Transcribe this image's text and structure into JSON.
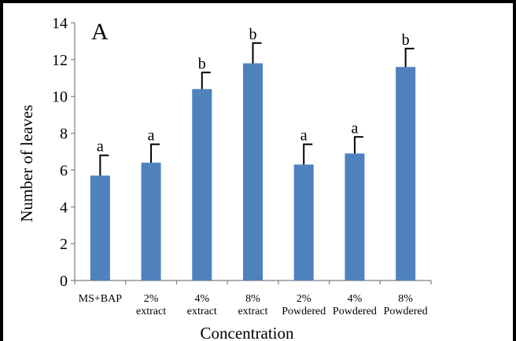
{
  "chart_data": {
    "type": "bar",
    "panel_label": "A",
    "title": "",
    "xlabel": "Concentration",
    "ylabel": "Number of leaves",
    "ylim": [
      0,
      14
    ],
    "yticks": [
      0,
      2,
      4,
      6,
      8,
      10,
      12,
      14
    ],
    "grid": false,
    "legend": "none",
    "bar_color": "#4f81bd",
    "categories": [
      [
        "MS+BAP"
      ],
      [
        "2%",
        "extract"
      ],
      [
        "4%",
        "extract"
      ],
      [
        "8%",
        "extract"
      ],
      [
        "2%",
        "Powdered"
      ],
      [
        "4%",
        "Powdered"
      ],
      [
        "8%",
        "Powdered"
      ]
    ],
    "values": [
      5.7,
      6.4,
      10.4,
      11.8,
      6.3,
      6.9,
      11.6
    ],
    "errors": [
      1.1,
      1.0,
      0.9,
      1.1,
      1.1,
      0.9,
      1.0
    ],
    "significance_letters": [
      "a",
      "a",
      "b",
      "b",
      "a",
      "a",
      "b"
    ]
  }
}
